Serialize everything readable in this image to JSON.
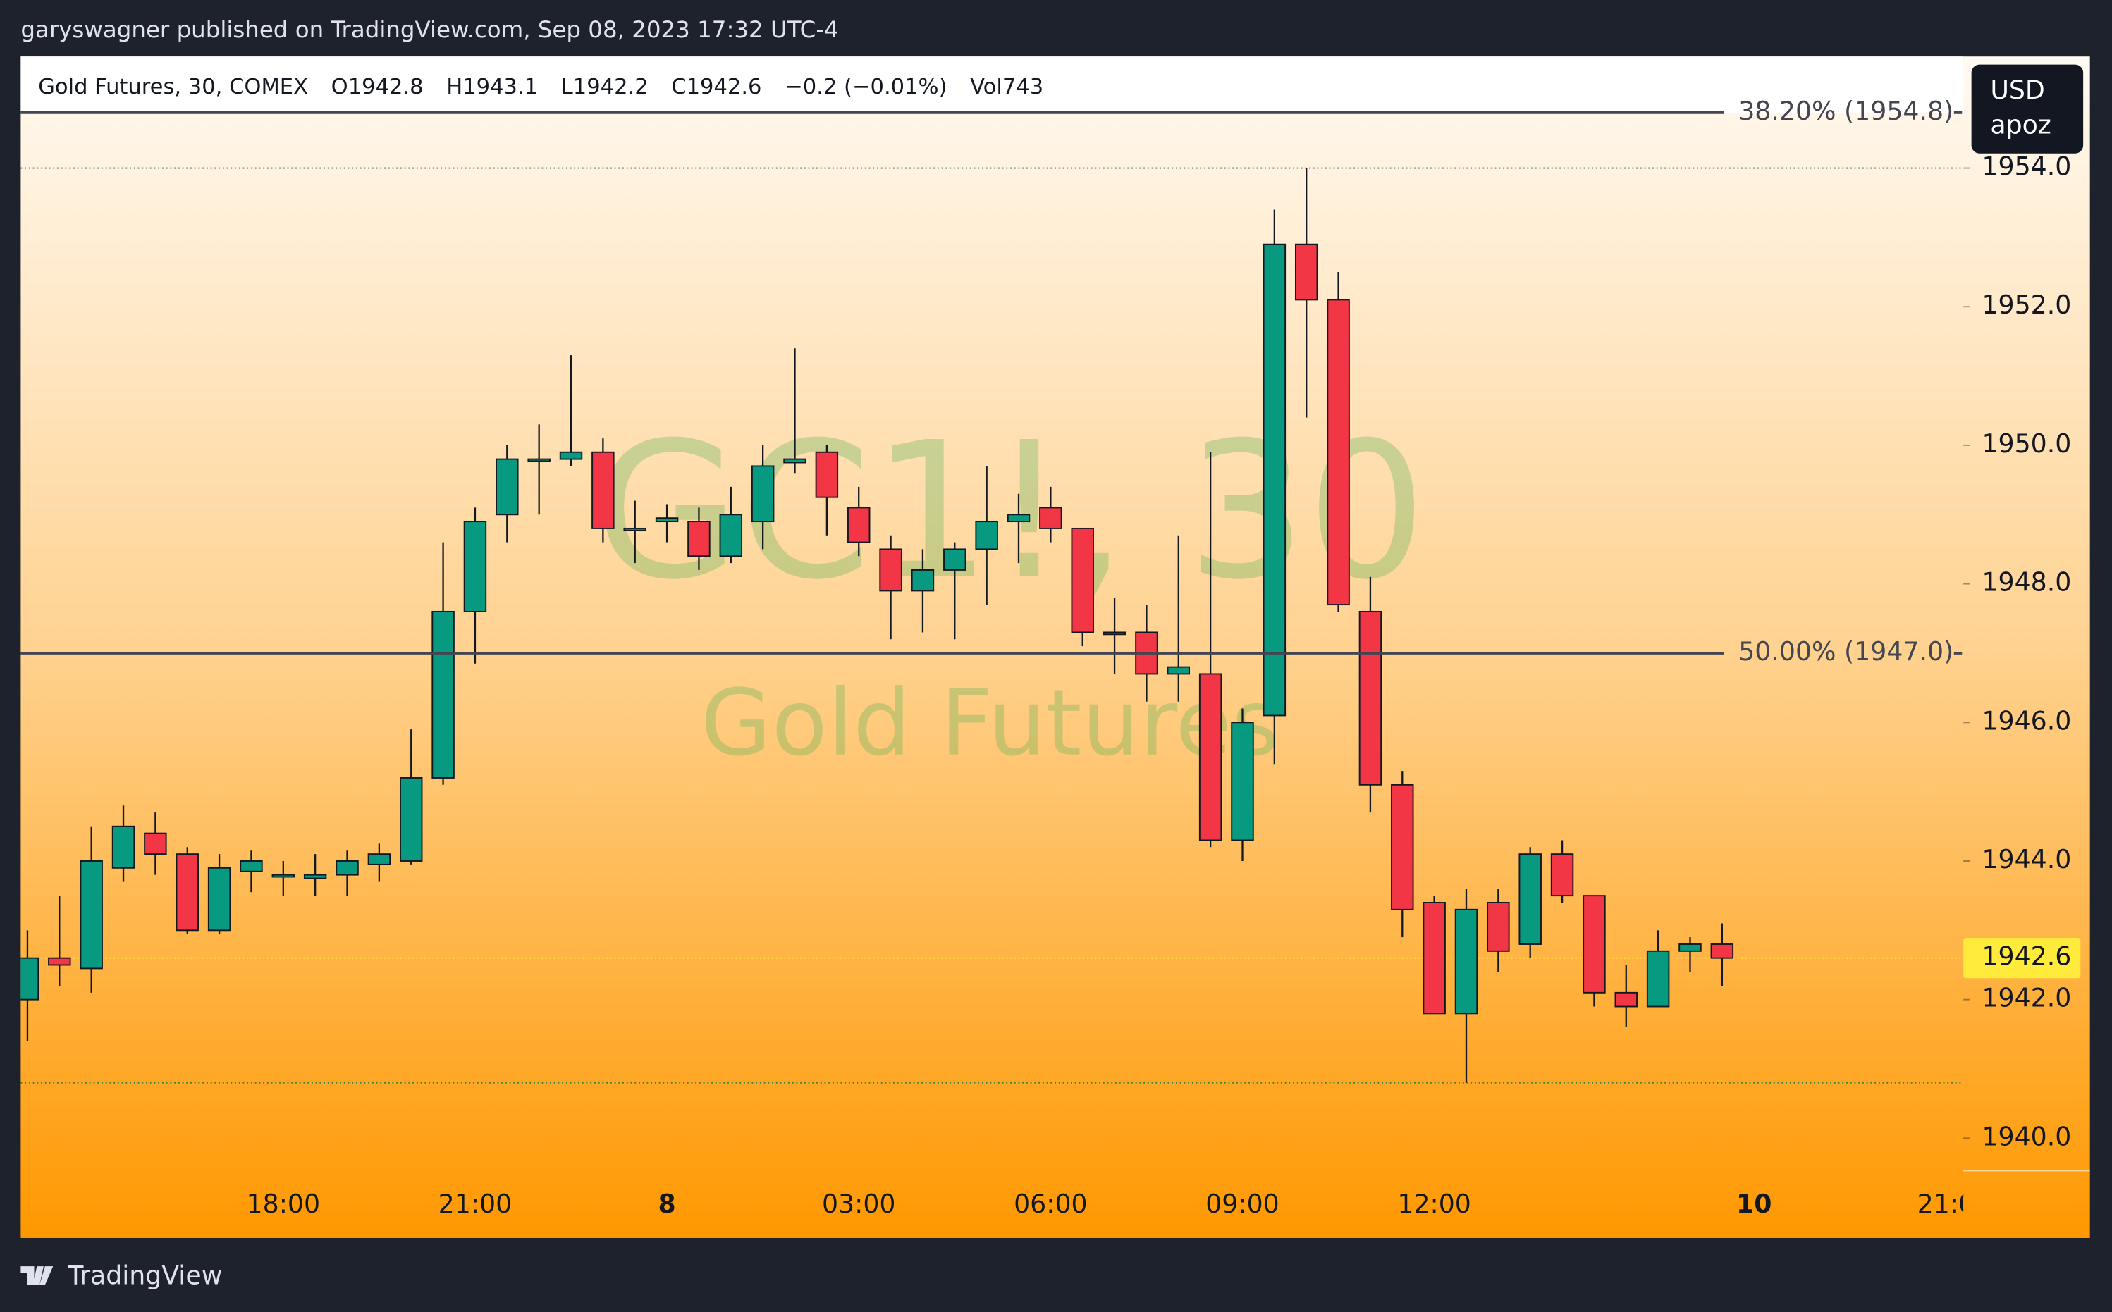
{
  "header": {
    "publisher": "garyswagner published on TradingView.com, Sep 08, 2023 17:32 UTC-4"
  },
  "legend": {
    "symbol": "Gold Futures, 30, COMEX",
    "open": "O1942.8",
    "high": "H1943.1",
    "low": "L1942.2",
    "close": "C1942.6",
    "change": "−0.2 (−0.01%)",
    "volume": "Vol743"
  },
  "currency": {
    "code": "USD",
    "unit": "apoz"
  },
  "footer": {
    "brand": "TradingView"
  },
  "chart_data": {
    "type": "candlestick",
    "watermark": "GC1!, 30",
    "watermark_subtitle": "Gold Futures",
    "categories": [
      null,
      null,
      null,
      null,
      null,
      null,
      null,
      null,
      "18:00",
      null,
      null,
      null,
      null,
      null,
      "21:00",
      null,
      null,
      null,
      null,
      null,
      "8",
      null,
      null,
      null,
      null,
      null,
      "03:00",
      null,
      null,
      null,
      null,
      null,
      "06:00",
      null,
      null,
      null,
      null,
      null,
      "09:00",
      null,
      null,
      null,
      null,
      null,
      "12:00",
      null,
      null,
      null,
      null,
      null,
      null,
      null,
      null,
      null,
      "10",
      null,
      null,
      null,
      null,
      null,
      "21:0"
    ],
    "open": [
      1942.0,
      1942.6,
      1942.45,
      1943.9,
      1944.4,
      1944.1,
      1943.0,
      1943.85,
      1943.8,
      1943.75,
      1943.8,
      1943.95,
      1944.0,
      1945.2,
      1947.6,
      1949.0,
      1949.8,
      1949.8,
      1949.9,
      1948.8,
      1948.9,
      1948.9,
      1948.4,
      1948.9,
      1949.75,
      1949.9,
      1949.1,
      1948.5,
      1947.9,
      1948.2,
      1948.5,
      1948.9,
      1949.1,
      1948.8,
      1947.3,
      1947.3,
      1946.7,
      1946.7,
      1944.3,
      1946.1,
      1952.9,
      1952.1,
      1947.6,
      1945.1,
      1943.4,
      1941.8,
      1943.4,
      1942.8,
      1944.1,
      1943.5,
      1942.1,
      1941.9,
      1942.7,
      1942.8,
      null,
      null,
      null,
      null,
      null,
      null,
      null
    ],
    "high": [
      1943.0,
      1943.5,
      1944.5,
      1944.8,
      1944.7,
      1944.2,
      1944.1,
      1944.15,
      1944.0,
      1944.1,
      1944.15,
      1944.25,
      1945.9,
      1948.6,
      1949.1,
      1950.0,
      1950.3,
      1951.3,
      1950.1,
      1949.2,
      1949.15,
      1949.1,
      1949.4,
      1950.0,
      1951.4,
      1950.0,
      1949.4,
      1948.7,
      1948.5,
      1948.6,
      1949.7,
      1949.3,
      1949.4,
      1948.8,
      1947.8,
      1947.7,
      1948.7,
      1949.9,
      1946.2,
      1953.4,
      1954.0,
      1952.5,
      1948.1,
      1945.3,
      1943.5,
      1943.6,
      1943.6,
      1944.2,
      1944.3,
      1943.5,
      1942.5,
      1943.0,
      1942.9,
      1943.1,
      null,
      null,
      null,
      null,
      null,
      null,
      null
    ],
    "low": [
      1941.4,
      1942.2,
      1942.1,
      1943.7,
      1943.8,
      1942.95,
      1942.95,
      1943.55,
      1943.5,
      1943.5,
      1943.5,
      1943.7,
      1943.95,
      1945.1,
      1946.85,
      1948.6,
      1949.0,
      1949.7,
      1948.6,
      1948.3,
      1948.6,
      1948.2,
      1948.3,
      1948.5,
      1949.6,
      1948.7,
      1948.4,
      1947.2,
      1947.3,
      1947.2,
      1947.7,
      1948.3,
      1948.6,
      1947.1,
      1946.7,
      1946.3,
      1946.3,
      1944.2,
      1944.0,
      1945.4,
      1950.4,
      1947.6,
      1944.7,
      1942.9,
      1941.8,
      1940.8,
      1942.4,
      1942.6,
      1943.4,
      1941.9,
      1941.6,
      1941.9,
      1942.4,
      1942.2,
      null,
      null,
      null,
      null,
      null,
      null,
      null
    ],
    "close": [
      1942.6,
      1942.5,
      1944.0,
      1944.5,
      1944.1,
      1943.0,
      1943.9,
      1944.0,
      1943.8,
      1943.8,
      1944.0,
      1944.1,
      1945.2,
      1947.6,
      1948.9,
      1949.8,
      1949.8,
      1949.9,
      1948.8,
      1948.8,
      1948.95,
      1948.4,
      1949.0,
      1949.7,
      1949.8,
      1949.25,
      1948.6,
      1947.9,
      1948.2,
      1948.5,
      1948.9,
      1949.0,
      1948.8,
      1947.3,
      1947.3,
      1946.7,
      1946.8,
      1944.3,
      1946.0,
      1952.9,
      1952.1,
      1947.7,
      1945.1,
      1943.3,
      1941.8,
      1943.3,
      1942.7,
      1944.1,
      1943.5,
      1942.1,
      1941.9,
      1942.7,
      1942.8,
      1942.6,
      null,
      null,
      null,
      null,
      null,
      null,
      null
    ],
    "up_color": "#089981",
    "down_color": "#f23645",
    "ylim": [
      1938.56,
      1955.61
    ],
    "yticks": [
      {
        "value": 1940,
        "label": "1940.0"
      },
      {
        "value": 1942,
        "label": "1942.0"
      },
      {
        "value": 1944,
        "label": "1944.0"
      },
      {
        "value": 1946,
        "label": "1946.0"
      },
      {
        "value": 1948,
        "label": "1948.0"
      },
      {
        "value": 1950,
        "label": "1950.0"
      },
      {
        "value": 1952,
        "label": "1952.0"
      },
      {
        "value": 1954,
        "label": "1954.0"
      }
    ],
    "fib_levels": [
      {
        "value": 1954.8,
        "label": "38.20% (1954.8)"
      },
      {
        "value": 1947.0,
        "label": "50.00% (1947.0)"
      }
    ],
    "dotted_lines": [
      1954.0,
      1940.8
    ],
    "last_price": 1942.6,
    "last_price_color": "#ffeb3b"
  }
}
